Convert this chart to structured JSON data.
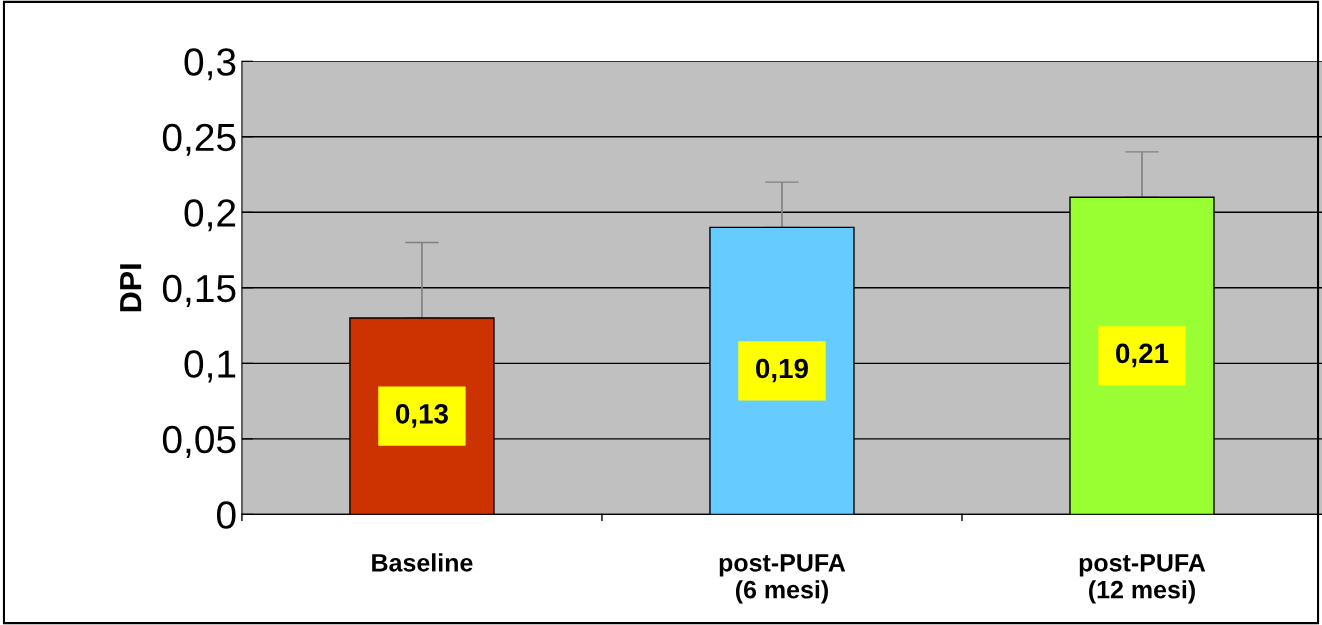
{
  "chart_data": {
    "type": "bar",
    "ylabel": "DPI",
    "categories": [
      "Baseline",
      "post-PUFA\n(6 mesi)",
      "post-PUFA\n(12 mesi)"
    ],
    "values": [
      0.13,
      0.19,
      0.21
    ],
    "colors": [
      "#cc3300",
      "#66ccff",
      "#99ff33"
    ],
    "errors": [
      [
        0.13,
        0.18
      ],
      [
        0.19,
        0.22
      ],
      [
        0.21,
        0.24
      ]
    ],
    "value_labels": [
      "0,13",
      "0,19",
      "0,21"
    ],
    "ylim": [
      0,
      0.3
    ],
    "yticks": [
      {
        "value": 0,
        "label": "0"
      },
      {
        "value": 0.05,
        "label": "0,05"
      },
      {
        "value": 0.1,
        "label": "0,1"
      },
      {
        "value": 0.15,
        "label": "0,15"
      },
      {
        "value": 0.2,
        "label": "0,2"
      },
      {
        "value": 0.25,
        "label": "0,25"
      },
      {
        "value": 0.3,
        "label": "0,3"
      }
    ],
    "grid": "y",
    "legend": false
  }
}
